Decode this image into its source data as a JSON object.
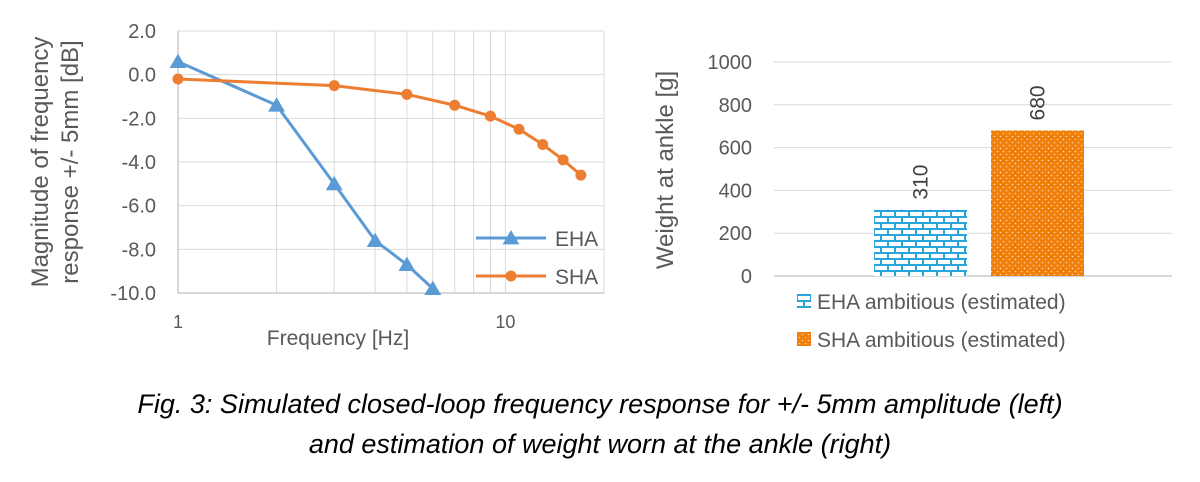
{
  "caption": {
    "line1": "Fig. 3: Simulated closed-loop frequency response for +/- 5mm amplitude (left)",
    "line2": "and estimation of weight worn at the ankle (right)"
  },
  "chart_data": [
    {
      "type": "line",
      "xlabel": "Frequency [Hz]",
      "ylabel_lines": [
        "Magnitude of frequency",
        "response  +/- 5mm [dB]"
      ],
      "xscale": "log",
      "xlim": [
        1,
        20
      ],
      "ylim": [
        -10,
        2
      ],
      "yticks": [
        2,
        0,
        -2,
        -4,
        -6,
        -8,
        -10
      ],
      "ytick_labels": [
        "2.0",
        "0.0",
        "-2.0",
        "-4.0",
        "-6.0",
        "-8.0",
        "-10.0"
      ],
      "xticks": [
        1,
        10
      ],
      "xtick_labels": [
        "1",
        "10"
      ],
      "grid": true,
      "legend_position": "bottom-right",
      "series": [
        {
          "name": "EHA",
          "color": "#5B9BD5",
          "marker": "triangle",
          "x": [
            1,
            2,
            3,
            4,
            5,
            6
          ],
          "y": [
            0.6,
            -1.4,
            -5.0,
            -7.6,
            -8.7,
            -9.8
          ]
        },
        {
          "name": "SHA",
          "color": "#ED7D31",
          "marker": "circle",
          "x": [
            1,
            3,
            5,
            7,
            9,
            11,
            13,
            15,
            17
          ],
          "y": [
            -0.2,
            -0.5,
            -0.9,
            -1.4,
            -1.9,
            -2.5,
            -3.2,
            -3.9,
            -4.6
          ]
        }
      ]
    },
    {
      "type": "bar",
      "ylabel": "Weight at ankle  [g]",
      "ylim": [
        0,
        1000
      ],
      "yticks": [
        0,
        200,
        400,
        600,
        800,
        1000
      ],
      "ytick_labels": [
        "0",
        "200",
        "400",
        "600",
        "800",
        "1000"
      ],
      "grid": true,
      "legend_position": "bottom",
      "bars": [
        {
          "name": "EHA ambitious (estimated)",
          "value": 310,
          "label": "310",
          "color": "#2AA5D8",
          "pattern": "brick"
        },
        {
          "name": "SHA ambitious (estimated)",
          "value": 680,
          "label": "680",
          "color": "#F07F09",
          "pattern": "dots"
        }
      ]
    }
  ]
}
